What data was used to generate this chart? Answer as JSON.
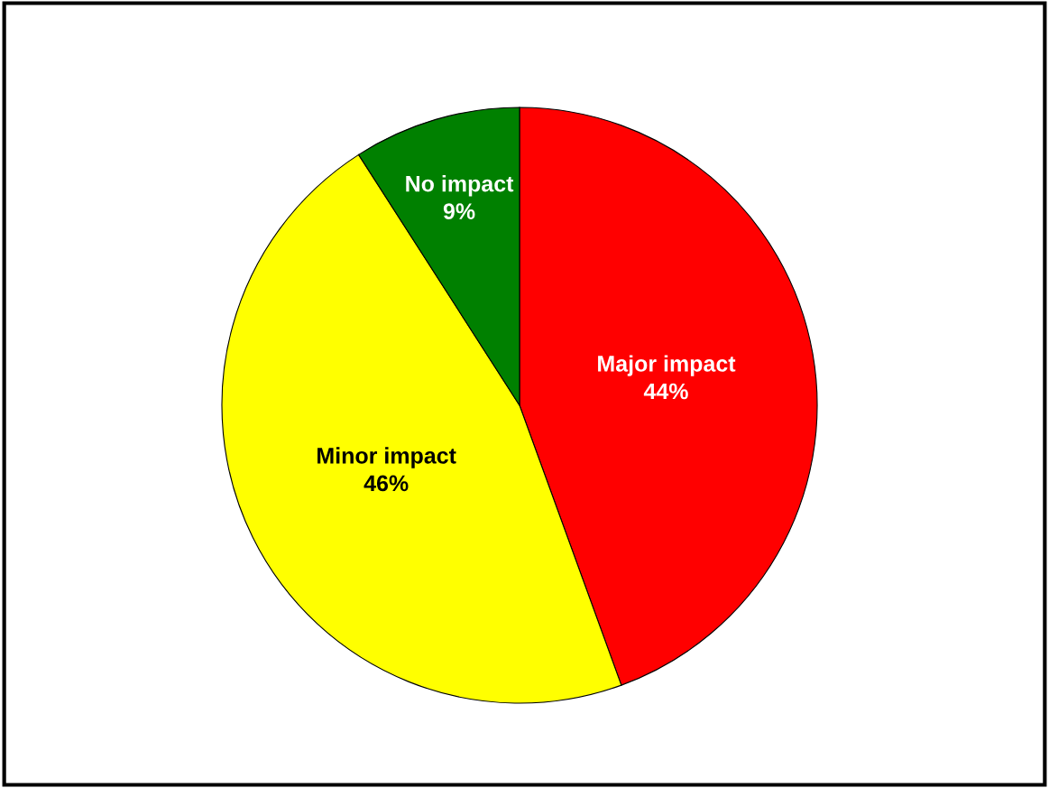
{
  "chart_data": {
    "type": "pie",
    "categories": [
      "Major impact",
      "Minor impact",
      "No impact"
    ],
    "values": [
      44,
      46,
      9
    ],
    "value_labels": [
      "44%",
      "46%",
      "9%"
    ],
    "colors": [
      "#ff0000",
      "#ffff00",
      "#008000"
    ]
  }
}
